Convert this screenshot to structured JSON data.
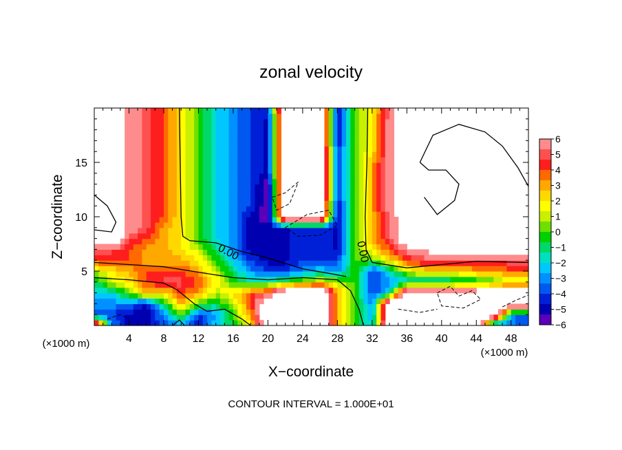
{
  "chart_data": {
    "type": "heatmap",
    "title": "zonal velocity",
    "xlabel": "X−coordinate",
    "ylabel": "Z−coordinate",
    "x_unit_left": "(×1000 m)",
    "x_unit_right": "(×1000 m)",
    "footer": "CONTOUR INTERVAL = 1.000E+01",
    "xlim": [
      0,
      50
    ],
    "ylim": [
      0,
      20
    ],
    "x_ticks": [
      4,
      8,
      12,
      16,
      20,
      24,
      28,
      32,
      36,
      40,
      44,
      48
    ],
    "x_tick_labels": [
      "4",
      "8",
      "12",
      "16",
      "20",
      "24",
      "28",
      "32",
      "36",
      "40",
      "44",
      "48"
    ],
    "y_ticks": [
      5,
      10,
      15
    ],
    "y_tick_labels": [
      "5",
      "10",
      "15"
    ],
    "contour_labels": [
      {
        "text": "0.00",
        "x": 15.5,
        "y": 6.8,
        "angle": 28
      },
      {
        "text": "0.00",
        "x": 31.0,
        "y": 6.8,
        "angle": 78
      }
    ],
    "colorbar": {
      "min": -6,
      "max": 6,
      "ticks": [
        6,
        5,
        4,
        3,
        2,
        1,
        0,
        -1,
        -2,
        -3,
        -4,
        -5,
        -6
      ],
      "tick_labels": [
        "6",
        "5",
        "4",
        "3",
        "2",
        "1",
        "0",
        "−1",
        "−2",
        "−3",
        "−4",
        "−5",
        "−6"
      ],
      "colors": [
        "#ff8c8c",
        "#ff5050",
        "#ff1e1e",
        "#ff6a00",
        "#ffa800",
        "#ffd800",
        "#ffff00",
        "#c8f000",
        "#6ee000",
        "#00d000",
        "#00d868",
        "#00e0c0",
        "#00c8ff",
        "#0090ff",
        "#0058f0",
        "#0020d8",
        "#0000b0",
        "#5a00b8"
      ]
    },
    "grid": false,
    "field_nodes_x": [
      0,
      2,
      4,
      6,
      8,
      10,
      12,
      14,
      16,
      18,
      20,
      22,
      24,
      26,
      28,
      30,
      32,
      34,
      36,
      38,
      40,
      42,
      44,
      46,
      48,
      50
    ],
    "field_nodes_z": [
      0,
      1,
      2,
      3,
      4,
      5,
      6,
      7,
      8,
      9,
      10,
      11,
      12,
      13,
      14,
      15,
      16,
      17,
      18,
      19,
      20
    ],
    "field_values": [
      [
        9,
        -3,
        -5,
        -5,
        -4,
        -3,
        -5,
        -2,
        -1,
        2,
        9,
        9,
        9,
        9,
        3,
        0,
        -2,
        9,
        9,
        9,
        9,
        9,
        9,
        -4,
        -3,
        -4
      ],
      [
        -4,
        -4,
        -5,
        -5,
        -3,
        0,
        -4,
        -3,
        0,
        3,
        9,
        9,
        9,
        9,
        3,
        0,
        -3,
        9,
        9,
        9,
        9,
        9,
        9,
        9,
        -3,
        -4
      ],
      [
        -3,
        -3,
        -3,
        -5,
        -1,
        3,
        0,
        -1,
        1,
        4,
        9,
        9,
        9,
        9,
        3,
        0,
        -3,
        9,
        9,
        9,
        9,
        9,
        9,
        9,
        9,
        9
      ],
      [
        -2,
        -2,
        0,
        3,
        2,
        4,
        3,
        1,
        2,
        4,
        5,
        9,
        9,
        9,
        3,
        0,
        -4,
        -2,
        9,
        9,
        9,
        9,
        9,
        9,
        9,
        9
      ],
      [
        -1,
        1,
        2,
        4,
        5,
        5,
        4,
        2,
        0,
        -1,
        -1,
        0,
        1,
        2,
        1,
        0,
        -4,
        -3,
        -2,
        -2,
        -2,
        -1,
        -1,
        0,
        1,
        1
      ],
      [
        1,
        2,
        3,
        4,
        4,
        4,
        3,
        1,
        -1,
        -3,
        -4,
        -4,
        -3,
        -2,
        -3,
        0,
        -4,
        -2,
        1,
        2,
        2,
        2,
        3,
        3,
        4,
        4
      ],
      [
        4,
        4,
        4,
        3,
        3,
        3,
        2,
        0,
        -2,
        -4,
        -5,
        -5,
        -4,
        -4,
        -4,
        0,
        0,
        2,
        4,
        5,
        5,
        5,
        5,
        5,
        5,
        5
      ],
      [
        5,
        5,
        4,
        3,
        3,
        2,
        1,
        -1,
        -3,
        -5,
        -5,
        -5,
        -4,
        -4,
        -5,
        0,
        2,
        4,
        6,
        6,
        9,
        9,
        9,
        9,
        9,
        9
      ],
      [
        9,
        9,
        5,
        4,
        3,
        2,
        0,
        -2,
        -3,
        -5,
        -5,
        -5,
        -4,
        -4,
        -5,
        0,
        3,
        5,
        9,
        9,
        9,
        9,
        9,
        9,
        9,
        9
      ],
      [
        9,
        9,
        6,
        5,
        3,
        2,
        0,
        -2,
        -3,
        -5,
        -5,
        -5,
        -4,
        -4,
        -5,
        0,
        3,
        5,
        9,
        9,
        9,
        9,
        9,
        9,
        9,
        9
      ],
      [
        9,
        9,
        6,
        5,
        4,
        2,
        0,
        -2,
        -3,
        -5,
        -6,
        9,
        9,
        9,
        -5,
        0,
        3,
        5,
        9,
        9,
        9,
        9,
        9,
        9,
        9,
        9
      ],
      [
        9,
        9,
        6,
        5,
        4,
        2,
        0,
        -2,
        -3,
        -4,
        -6,
        9,
        9,
        9,
        -5,
        0,
        3,
        6,
        9,
        9,
        9,
        9,
        9,
        9,
        9,
        9
      ],
      [
        9,
        9,
        6,
        5,
        4,
        2,
        0,
        -2,
        -3,
        -4,
        -6,
        9,
        9,
        9,
        -4,
        0,
        3,
        6,
        9,
        9,
        9,
        9,
        9,
        9,
        9,
        9
      ],
      [
        9,
        9,
        6,
        5,
        4,
        2,
        0,
        -2,
        -3,
        -4,
        -6,
        9,
        9,
        9,
        -4,
        0,
        3,
        6,
        9,
        9,
        9,
        9,
        9,
        9,
        9,
        9
      ],
      [
        9,
        9,
        6,
        5,
        4,
        2,
        0,
        -2,
        -3,
        -4,
        -5,
        9,
        9,
        9,
        -4,
        0,
        3,
        6,
        9,
        9,
        9,
        9,
        9,
        9,
        9,
        9
      ],
      [
        9,
        9,
        6,
        5,
        4,
        2,
        0,
        -2,
        -3,
        -4,
        -5,
        9,
        9,
        9,
        -4,
        0,
        3,
        6,
        9,
        9,
        9,
        9,
        9,
        9,
        9,
        9
      ],
      [
        9,
        9,
        6,
        5,
        4,
        2,
        0,
        -2,
        -3,
        -4,
        -5,
        9,
        9,
        9,
        -4,
        0,
        2,
        6,
        9,
        9,
        9,
        9,
        9,
        9,
        9,
        9
      ],
      [
        9,
        9,
        6,
        5,
        4,
        2,
        0,
        -2,
        -3,
        -4,
        -5,
        9,
        9,
        9,
        -5,
        0,
        2,
        6,
        9,
        9,
        9,
        9,
        9,
        9,
        9,
        9
      ],
      [
        9,
        9,
        6,
        5,
        4,
        2,
        0,
        -2,
        -3,
        -4,
        -5,
        9,
        9,
        9,
        -5,
        0,
        2,
        6,
        9,
        9,
        9,
        9,
        9,
        9,
        9,
        9
      ],
      [
        9,
        9,
        6,
        5,
        4,
        2,
        0,
        -2,
        -3,
        -4,
        -5,
        9,
        9,
        9,
        -5,
        0,
        2,
        6,
        9,
        9,
        9,
        9,
        9,
        9,
        9,
        9
      ],
      [
        9,
        9,
        6,
        5,
        4,
        2,
        0,
        -2,
        -3,
        -4,
        -4,
        9,
        9,
        9,
        -5,
        0,
        2,
        5,
        9,
        9,
        9,
        9,
        9,
        9,
        9,
        9
      ]
    ]
  }
}
